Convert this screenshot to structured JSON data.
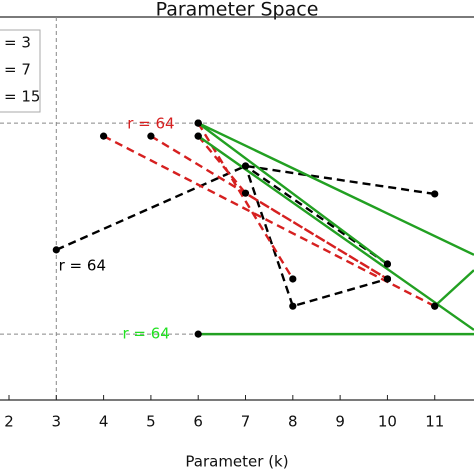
{
  "chart_data": {
    "type": "line",
    "title": "Parameter Space",
    "xlabel": "Parameter (k)",
    "xlim": [
      1.81,
      11.83
    ],
    "xticks": [
      2,
      3,
      4,
      5,
      6,
      7,
      8,
      9,
      10,
      11
    ],
    "ylim": [
      0,
      10
    ],
    "reference_lines": {
      "x": [
        3
      ],
      "y": [
        7.23,
        1.72
      ]
    },
    "series": [
      {
        "name": "= 3",
        "color": "#000000",
        "dash": true,
        "x": [
          11,
          7,
          3,
          null,
          10,
          7,
          8,
          10
        ],
        "values": [
          5.38,
          6.11,
          3.92,
          null,
          3.55,
          6.11,
          2.45,
          3.16
        ]
      },
      {
        "name": "= 7",
        "color": "#d62020",
        "dash": true,
        "x": [
          4,
          11,
          null,
          5,
          10,
          null,
          6,
          8,
          null,
          6,
          7,
          10
        ],
        "values": [
          6.89,
          2.45,
          null,
          6.89,
          3.16,
          null,
          7.23,
          3.16,
          null,
          6.89,
          5.4,
          3.16
        ]
      },
      {
        "name": "= 15",
        "color": "#22a022",
        "dash": false,
        "x": [
          6,
          11.83,
          null,
          6,
          11.83,
          null,
          6,
          10,
          null,
          11,
          11.83,
          null,
          6,
          11.83
        ],
        "values": [
          7.23,
          3.79,
          null,
          6.89,
          1.83,
          null,
          7.23,
          3.55,
          null,
          2.45,
          3.39,
          null,
          1.72,
          1.72
        ]
      }
    ],
    "annotations": [
      {
        "text": "r = 64",
        "x": 5,
        "y": 7.2,
        "color": "#d62020"
      },
      {
        "text": "r = 64",
        "x": 3.55,
        "y": 3.5,
        "color": "#000000"
      },
      {
        "text": "r = 64",
        "x": 4.9,
        "y": 1.72,
        "color": "#22e022"
      }
    ]
  }
}
